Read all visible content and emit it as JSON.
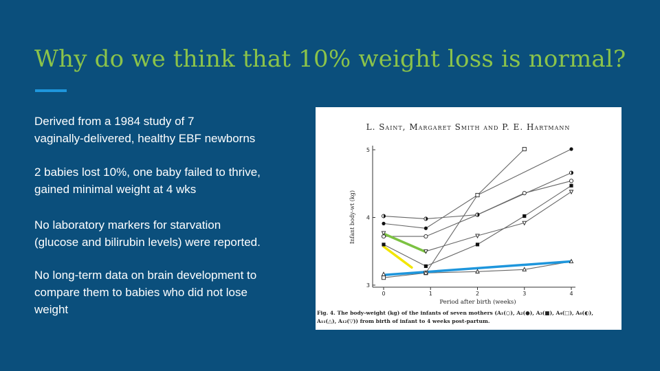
{
  "slide": {
    "title": "Why do we think that 10% weight loss is normal?",
    "accent_color": "#1e96dc",
    "title_color": "#8bc34a",
    "background": "#0b4f7c",
    "paragraphs": [
      [
        "Derived from a 1984 study of 7",
        "vaginally-delivered, healthy EBF newborns"
      ],
      [
        "2 babies lost 10%, one baby failed to thrive,",
        "gained minimal weight at 4 wks"
      ],
      [
        "No laboratory markers for starvation",
        "(glucose and bilirubin levels) were reported."
      ],
      [
        "No long-term data on brain development to",
        "compare them to babies who did not lose",
        "weight"
      ]
    ]
  },
  "figure": {
    "header": "L. Saint, Margaret Smith and P. E. Hartmann",
    "caption_line1": "Fig. 4. The body-weight (kg) of the infants of seven mothers (A₁(○), A₂(●), A₃(■), A₄(□), A₆(◐),",
    "caption_line2": "A₁₁(△), A₁₂(▽)) from birth of infant to 4 weeks post-partum.",
    "highlight_colors": {
      "green": "#7cc242",
      "yellow": "#f2e600",
      "blue": "#1e96dc"
    }
  },
  "chart_data": {
    "type": "line",
    "xlabel": "Period after birth (weeks)",
    "ylabel": "Infant body-wt (kg)",
    "xlim": [
      0,
      4
    ],
    "ylim": [
      3,
      5
    ],
    "x_ticks": [
      "0",
      "1",
      "2",
      "3",
      "4"
    ],
    "y_ticks": [
      "3",
      "4",
      "5"
    ],
    "series": [
      {
        "marker": "open-circle",
        "x": [
          0,
          0.9,
          2,
          3,
          4
        ],
        "y": [
          3.72,
          3.72,
          4.04,
          4.36,
          4.54
        ]
      },
      {
        "marker": "filled-circle",
        "x": [
          0,
          0.9,
          2,
          4
        ],
        "y": [
          3.91,
          3.84,
          4.33,
          5.01
        ]
      },
      {
        "marker": "filled-square",
        "x": [
          0,
          0.9,
          2,
          3,
          4
        ],
        "y": [
          3.6,
          3.28,
          3.6,
          4.02,
          4.47
        ]
      },
      {
        "marker": "open-square",
        "x": [
          0,
          0.9,
          2,
          3
        ],
        "y": [
          3.11,
          3.18,
          4.33,
          5.01
        ]
      },
      {
        "marker": "half-circle",
        "x": [
          0,
          0.9,
          2,
          4
        ],
        "y": [
          4.02,
          3.98,
          4.04,
          4.66
        ]
      },
      {
        "marker": "open-triangle",
        "x": [
          0,
          0.9,
          2,
          3,
          4
        ],
        "y": [
          3.16,
          3.18,
          3.2,
          3.23,
          3.35
        ]
      },
      {
        "marker": "open-down-triangle",
        "x": [
          0,
          0.9,
          2,
          3,
          4
        ],
        "y": [
          3.77,
          3.5,
          3.73,
          3.92,
          4.38
        ]
      }
    ],
    "highlights": [
      {
        "color": "green",
        "x": [
          0,
          0.9
        ],
        "y": [
          3.76,
          3.49
        ]
      },
      {
        "color": "yellow",
        "x": [
          0,
          0.6
        ],
        "y": [
          3.57,
          3.26
        ]
      },
      {
        "color": "blue",
        "x": [
          0,
          4
        ],
        "y": [
          3.15,
          3.35
        ]
      }
    ]
  }
}
